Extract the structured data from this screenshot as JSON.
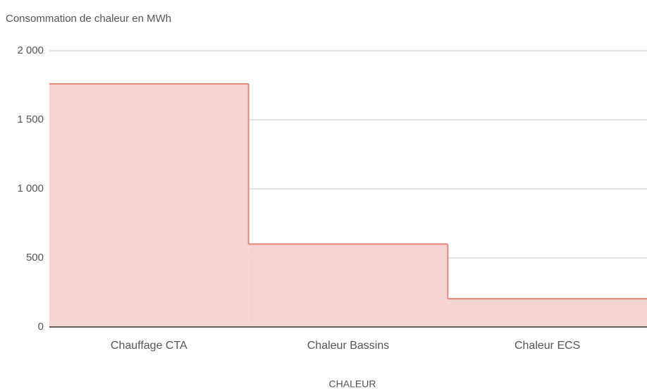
{
  "chart_data": {
    "type": "area",
    "stepped": true,
    "title": "Consommation de chaleur en MWh",
    "x_label": "CHALEUR",
    "categories": [
      "Chauffage CTA",
      "Chaleur Bassins",
      "Chaleur ECS"
    ],
    "values": [
      1760,
      600,
      205
    ],
    "color": "#e8867a",
    "fill_color": "#f4d5d1",
    "ylim": [
      0,
      2000
    ],
    "yticks": [
      0,
      500,
      {
        "value": 1000,
        "label": "1 000"
      },
      {
        "value": 1500,
        "label": "1 500"
      },
      {
        "value": 2000,
        "label": "2 000"
      }
    ],
    "grid": true
  }
}
